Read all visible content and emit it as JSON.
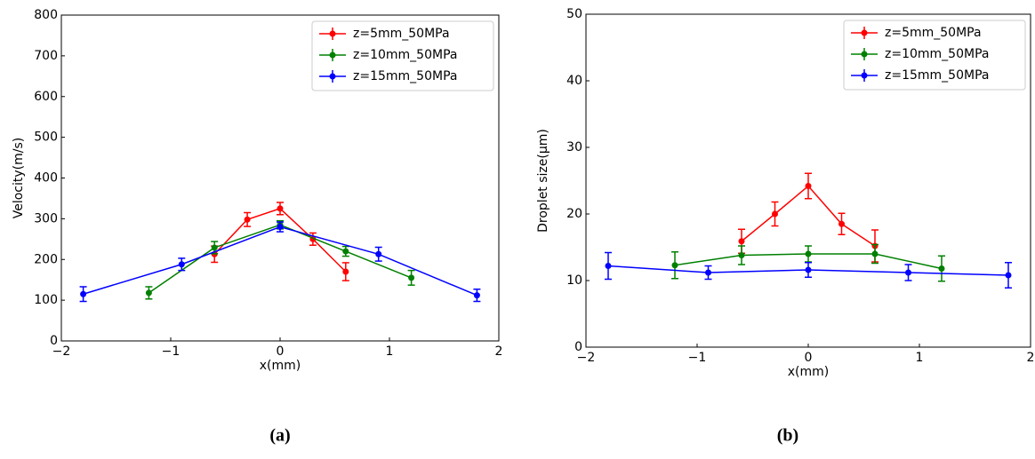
{
  "chart_data": [
    {
      "type": "line",
      "caption": "(a)",
      "xlabel": "x(mm)",
      "ylabel": "Velocity(m/s)",
      "xlim": [
        -2,
        2
      ],
      "xticks": [
        {
          "value": -2,
          "label": "−2"
        },
        {
          "value": -1,
          "label": "−1"
        },
        0,
        1,
        2
      ],
      "ylim": [
        0,
        800
      ],
      "yticks": [
        0,
        100,
        200,
        300,
        400,
        500,
        600,
        700,
        800
      ],
      "legend": "upper right",
      "series": [
        {
          "name": "z=5mm_50MPa",
          "color": "#ff0000",
          "x": [
            -0.6,
            -0.3,
            0,
            0.3,
            0.6
          ],
          "values": [
            213,
            298,
            325,
            250,
            170
          ],
          "errors": [
            20,
            17,
            15,
            15,
            22
          ]
        },
        {
          "name": "z=10mm_50MPa",
          "color": "#008000",
          "x": [
            -1.2,
            -0.6,
            0,
            0.6,
            1.2
          ],
          "values": [
            118,
            229,
            285,
            220,
            155
          ],
          "errors": [
            15,
            15,
            10,
            12,
            18
          ]
        },
        {
          "name": "z=15mm_50MPa",
          "color": "#0000ff",
          "x": [
            -1.8,
            -0.9,
            0,
            0.9,
            1.8
          ],
          "values": [
            115,
            188,
            280,
            213,
            112
          ],
          "errors": [
            18,
            15,
            12,
            17,
            15
          ]
        }
      ]
    },
    {
      "type": "line",
      "caption": "(b)",
      "xlabel": "x(mm)",
      "ylabel": "Droplet size(μm)",
      "xlim": [
        -2,
        2
      ],
      "xticks": [
        {
          "value": -2,
          "label": "−2"
        },
        {
          "value": -1,
          "label": "−1"
        },
        0,
        1,
        2
      ],
      "ylim": [
        0,
        50
      ],
      "yticks": [
        0,
        10,
        20,
        30,
        40,
        50
      ],
      "legend": "upper right",
      "series": [
        {
          "name": "z=5mm_50MPa",
          "color": "#ff0000",
          "x": [
            -0.6,
            -0.3,
            0,
            0.3,
            0.6
          ],
          "values": [
            15.9,
            20,
            24.2,
            18.5,
            15.2
          ],
          "errors": [
            1.8,
            1.8,
            1.9,
            1.6,
            2.4
          ]
        },
        {
          "name": "z=10mm_50MPa",
          "color": "#008000",
          "x": [
            -1.2,
            -0.6,
            0,
            0.6,
            1.2
          ],
          "values": [
            12.3,
            13.8,
            14,
            14,
            11.8
          ],
          "errors": [
            2,
            1.4,
            1.2,
            1.4,
            1.9
          ]
        },
        {
          "name": "z=15mm_50MPa",
          "color": "#0000ff",
          "x": [
            -1.8,
            -0.9,
            0,
            0.9,
            1.8
          ],
          "values": [
            12.2,
            11.2,
            11.6,
            11.2,
            10.8
          ],
          "errors": [
            2,
            1,
            1.1,
            1.2,
            1.9
          ]
        }
      ]
    }
  ]
}
